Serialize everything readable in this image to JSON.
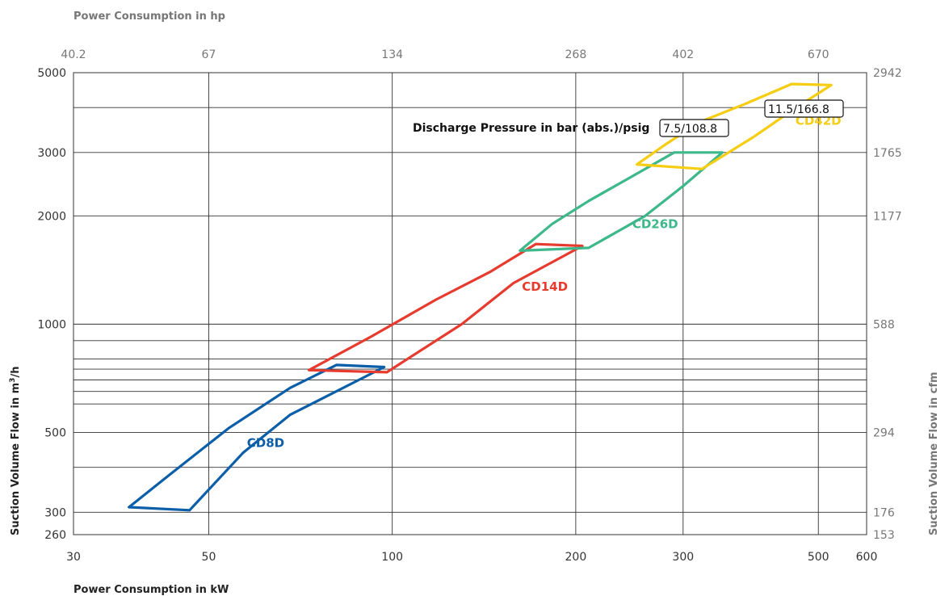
{
  "chart_data": {
    "type": "line",
    "title": "",
    "x_scale": "log",
    "y_scale": "log",
    "xlim": [
      30,
      600
    ],
    "ylim": [
      260,
      5000
    ],
    "xlabel": "Power Consumption in kW",
    "x2label": "Power Consumption in hp",
    "ylabel_main": "Suction Volume Flow in m",
    "ylabel_sup": "3",
    "ylabel_tail": "/h",
    "y2label": "Suction Volume Flow in cfm",
    "x_ticks": [
      {
        "value": 30,
        "label": "30"
      },
      {
        "value": 50,
        "label": "50"
      },
      {
        "value": 100,
        "label": "100"
      },
      {
        "value": 200,
        "label": "200"
      },
      {
        "value": 300,
        "label": "300"
      },
      {
        "value": 500,
        "label": "500"
      },
      {
        "value": 600,
        "label": "600"
      }
    ],
    "x2_ticks": [
      {
        "value": 30,
        "label": "40.2"
      },
      {
        "value": 50,
        "label": "67"
      },
      {
        "value": 100,
        "label": "134"
      },
      {
        "value": 200,
        "label": "268"
      },
      {
        "value": 300,
        "label": "402"
      },
      {
        "value": 500,
        "label": "670"
      }
    ],
    "y_ticks": [
      {
        "value": 260,
        "label": "260"
      },
      {
        "value": 300,
        "label": "300"
      },
      {
        "value": 500,
        "label": "500"
      },
      {
        "value": 1000,
        "label": "1000"
      },
      {
        "value": 2000,
        "label": "2000"
      },
      {
        "value": 3000,
        "label": "3000"
      },
      {
        "value": 5000,
        "label": "5000"
      }
    ],
    "y2_ticks": [
      {
        "value": 260,
        "label": "153"
      },
      {
        "value": 300,
        "label": "176"
      },
      {
        "value": 500,
        "label": "294"
      },
      {
        "value": 1000,
        "label": "588"
      },
      {
        "value": 2000,
        "label": "1177"
      },
      {
        "value": 3000,
        "label": "1765"
      },
      {
        "value": 5000,
        "label": "2942"
      }
    ],
    "x_grid": [
      50,
      100,
      200,
      300,
      500
    ],
    "y_grid": [
      300,
      400,
      500,
      600,
      650,
      700,
      750,
      800,
      900,
      1000,
      2000,
      3000,
      4000
    ],
    "series": [
      {
        "name": "CD8D",
        "color": "#0b5ea8",
        "points": [
          [
            37,
            310
          ],
          [
            46.5,
            304
          ],
          [
            57,
            440
          ],
          [
            68,
            560
          ],
          [
            97,
            760
          ],
          [
            81,
            770
          ],
          [
            68,
            665
          ],
          [
            54,
            515
          ],
          [
            43,
            380
          ],
          [
            37,
            310
          ]
        ]
      },
      {
        "name": "CD14D",
        "color": "#e63b2e",
        "points": [
          [
            73,
            745
          ],
          [
            98,
            735
          ],
          [
            130,
            1000
          ],
          [
            158,
            1300
          ],
          [
            205,
            1650
          ],
          [
            172,
            1670
          ],
          [
            145,
            1400
          ],
          [
            118,
            1170
          ],
          [
            92,
            920
          ],
          [
            73,
            745
          ]
        ]
      },
      {
        "name": "CD26D",
        "color": "#3db88a",
        "points": [
          [
            162,
            1600
          ],
          [
            210,
            1630
          ],
          [
            260,
            2000
          ],
          [
            300,
            2420
          ],
          [
            348,
            3000
          ],
          [
            290,
            3000
          ],
          [
            250,
            2600
          ],
          [
            210,
            2200
          ],
          [
            183,
            1900
          ],
          [
            162,
            1600
          ]
        ]
      },
      {
        "name": "CD42D",
        "color": "#f5cd12",
        "points": [
          [
            252,
            2780
          ],
          [
            322,
            2700
          ],
          [
            390,
            3300
          ],
          [
            460,
            4000
          ],
          [
            525,
            4620
          ],
          [
            452,
            4650
          ],
          [
            380,
            4100
          ],
          [
            320,
            3650
          ],
          [
            280,
            3150
          ],
          [
            252,
            2780
          ]
        ]
      }
    ],
    "series_labels": [
      {
        "text": "CD8D",
        "x": 62,
        "y": 455,
        "color": "#0b5ea8"
      },
      {
        "text": "CD14D",
        "x": 178,
        "y": 1240,
        "color": "#e63b2e"
      },
      {
        "text": "CD26D",
        "x": 270,
        "y": 1850,
        "color": "#3db88a"
      },
      {
        "text": "CD42D",
        "x": 500,
        "y": 3580,
        "color": "#f5cd12"
      }
    ],
    "annotations": {
      "discharge_label": "Discharge Pressure in bar (abs.)/psig",
      "box_a": "7.5/108.8",
      "box_b": "11.5/166.8"
    }
  }
}
